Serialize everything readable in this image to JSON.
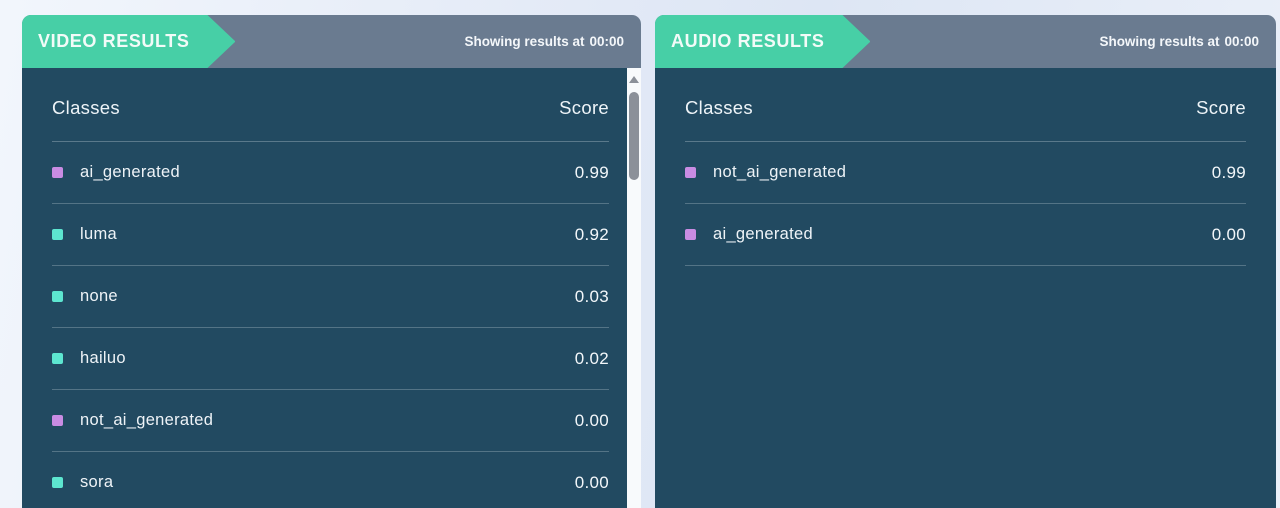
{
  "colors": {
    "accent_teal": "#47cfa6",
    "header_slate": "#6a7b90",
    "panel_body": "#224a61",
    "marker_purple": "#c98ce3",
    "marker_teal": "#5de6d0",
    "page_background": "#e7edf7"
  },
  "panels": [
    {
      "id": "video",
      "title": "VIDEO RESULTS",
      "status_prefix": "Showing results at",
      "status_time": "00:00",
      "columns": {
        "classes": "Classes",
        "score": "Score"
      },
      "rows": [
        {
          "label": "ai_generated",
          "score": "0.99",
          "marker_color": "#c98ce3"
        },
        {
          "label": "luma",
          "score": "0.92",
          "marker_color": "#5de6d0"
        },
        {
          "label": "none",
          "score": "0.03",
          "marker_color": "#5de6d0"
        },
        {
          "label": "hailuo",
          "score": "0.02",
          "marker_color": "#5de6d0"
        },
        {
          "label": "not_ai_generated",
          "score": "0.00",
          "marker_color": "#c98ce3"
        },
        {
          "label": "sora",
          "score": "0.00",
          "marker_color": "#5de6d0"
        }
      ]
    },
    {
      "id": "audio",
      "title": "AUDIO RESULTS",
      "status_prefix": "Showing results at",
      "status_time": "00:00",
      "columns": {
        "classes": "Classes",
        "score": "Score"
      },
      "rows": [
        {
          "label": "not_ai_generated",
          "score": "0.99",
          "marker_color": "#c98ce3"
        },
        {
          "label": "ai_generated",
          "score": "0.00",
          "marker_color": "#c98ce3"
        }
      ]
    }
  ]
}
